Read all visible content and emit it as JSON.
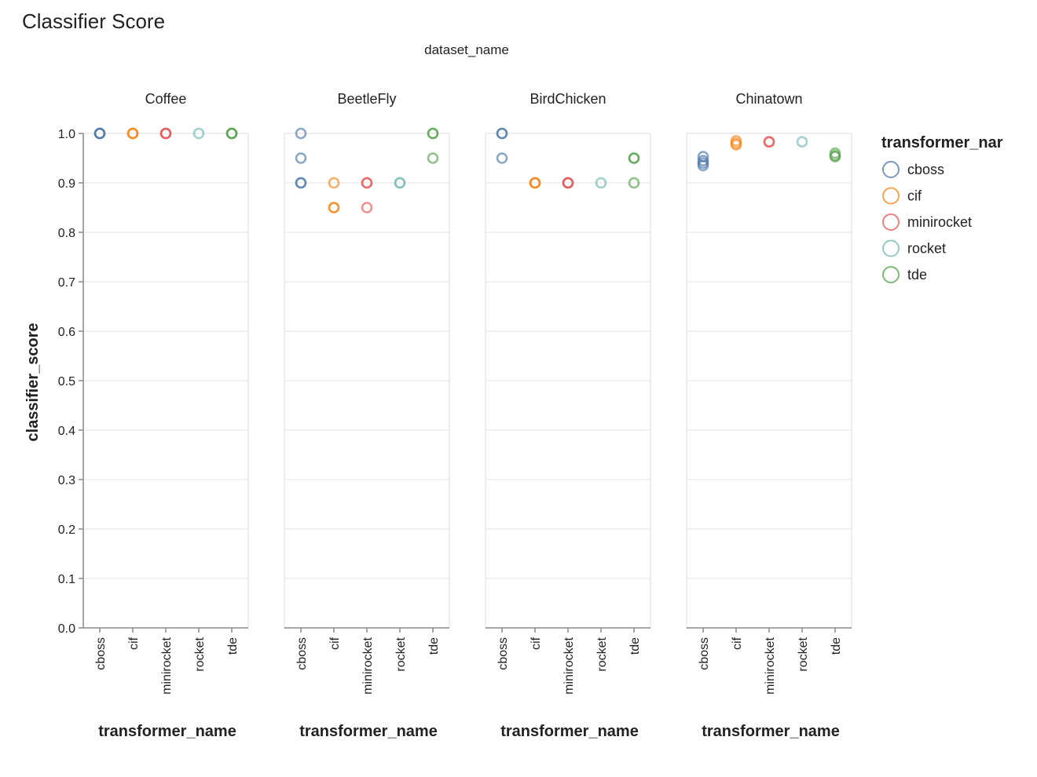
{
  "chart_data": {
    "type": "scatter",
    "title": "Classifier Score",
    "facet_header": "dataset_name",
    "facets": [
      "Coffee",
      "BeetleFly",
      "BirdChicken",
      "Chinatown"
    ],
    "categories": [
      "cboss",
      "cif",
      "minirocket",
      "rocket",
      "tde"
    ],
    "xlabel": "transformer_name",
    "ylabel": "classifier_score",
    "ylim": [
      0,
      1
    ],
    "y_ticks": [
      "0.0",
      "0.1",
      "0.2",
      "0.3",
      "0.4",
      "0.5",
      "0.6",
      "0.7",
      "0.8",
      "0.9",
      "1.0"
    ],
    "grid": true,
    "legend": {
      "title": "transformer_nar",
      "placement": "right",
      "entries": [
        "cboss",
        "cif",
        "minirocket",
        "rocket",
        "tde"
      ]
    },
    "colors": {
      "cboss": "#4c78a8",
      "cif": "#f58518",
      "minirocket": "#e45756",
      "rocket": "#72b7b2",
      "tde": "#54a24b"
    },
    "points": {
      "Coffee": {
        "cboss": [
          1.0,
          1.0,
          1.0
        ],
        "cif": [
          1.0,
          1.0,
          1.0
        ],
        "minirocket": [
          1.0,
          1.0,
          1.0
        ],
        "rocket": [
          1.0
        ],
        "tde": [
          1.0,
          1.0,
          1.0
        ]
      },
      "BeetleFly": {
        "cboss": [
          1.0,
          0.95,
          0.9,
          0.9
        ],
        "cif": [
          0.9,
          0.85,
          0.85
        ],
        "minirocket": [
          0.9,
          0.9,
          0.85
        ],
        "rocket": [
          0.9,
          0.9
        ],
        "tde": [
          1.0,
          1.0,
          0.95
        ]
      },
      "BirdChicken": {
        "cboss": [
          1.0,
          1.0,
          0.95
        ],
        "cif": [
          0.9,
          0.9,
          0.9
        ],
        "minirocket": [
          0.9,
          0.9,
          0.9
        ],
        "rocket": [
          0.9
        ],
        "tde": [
          0.95,
          0.95,
          0.9
        ]
      },
      "Chinatown": {
        "cboss": [
          0.953,
          0.945,
          0.94,
          0.935
        ],
        "cif": [
          0.985,
          0.98,
          0.977
        ],
        "minirocket": [
          0.983,
          0.983
        ],
        "rocket": [
          0.983
        ],
        "tde": [
          0.96,
          0.955,
          0.953
        ]
      }
    }
  }
}
